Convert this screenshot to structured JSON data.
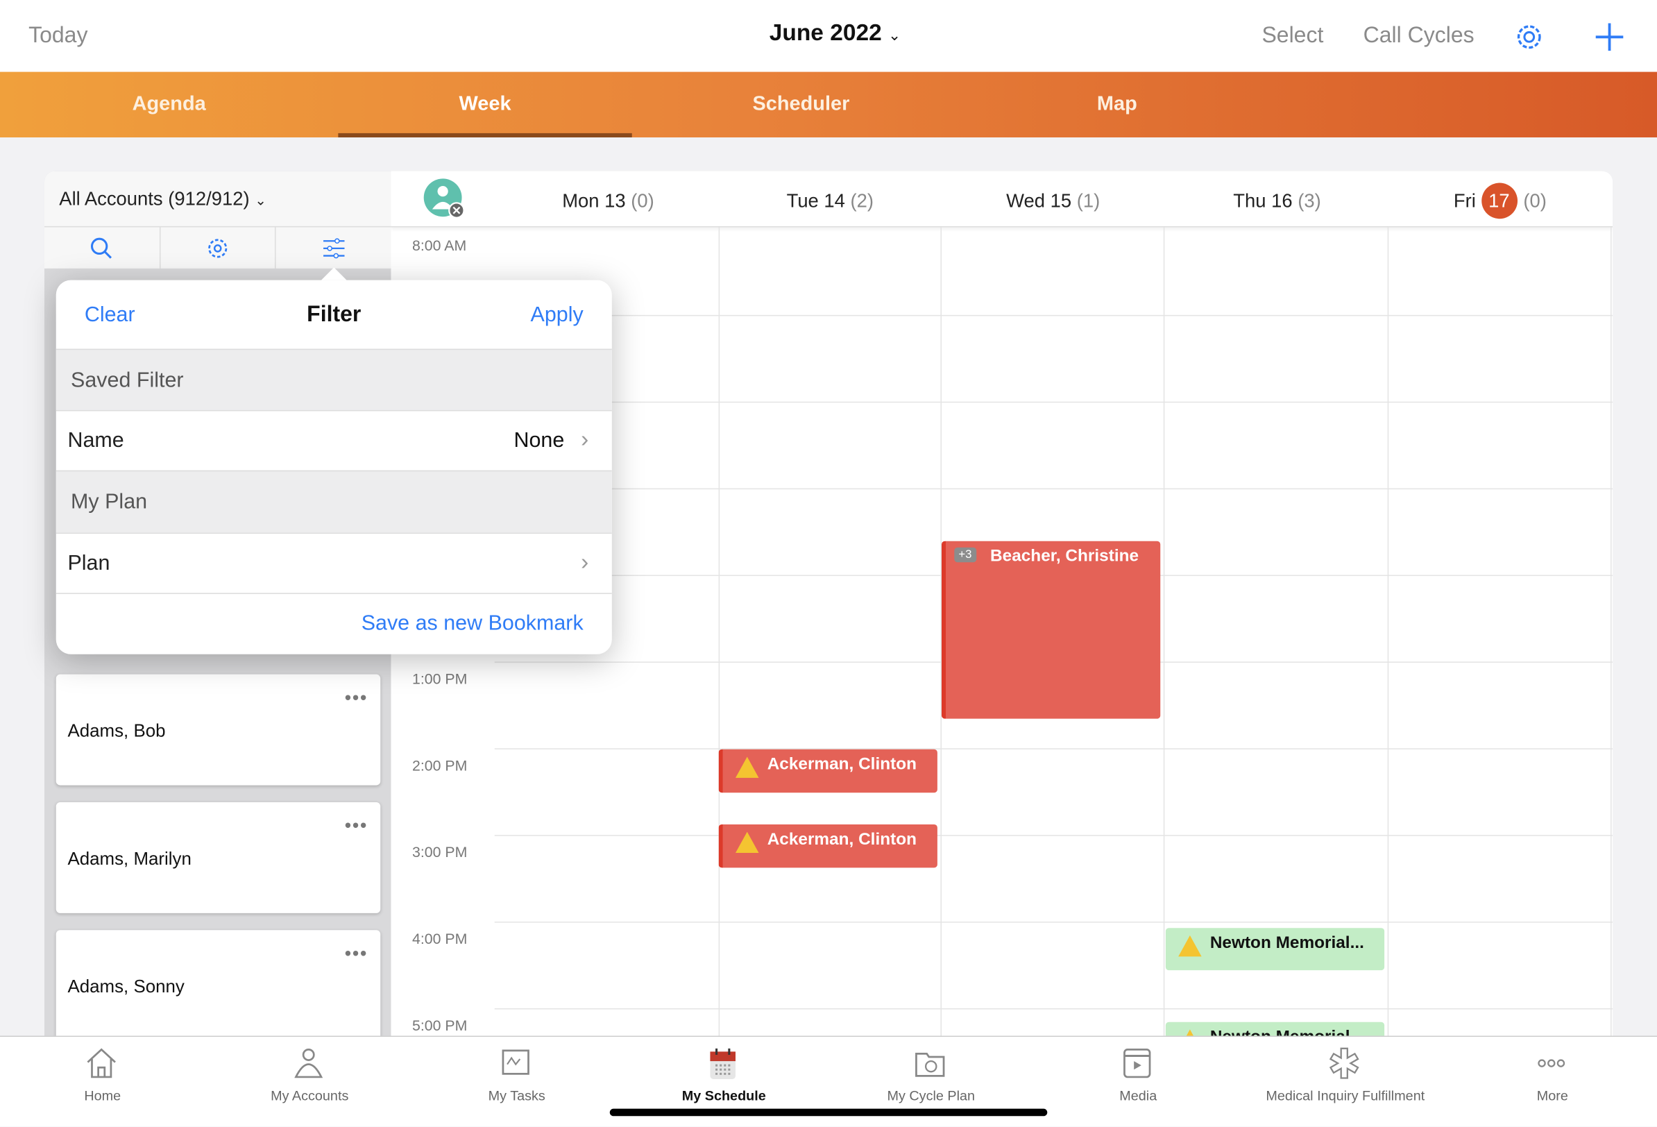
{
  "header": {
    "today": "Today",
    "month": "June 2022",
    "select": "Select",
    "call_cycles": "Call Cycles",
    "accent": "#2f7cf6"
  },
  "tabs": [
    {
      "label": "Agenda"
    },
    {
      "label": "Week",
      "active": true
    },
    {
      "label": "Scheduler"
    },
    {
      "label": "Map"
    }
  ],
  "accounts": {
    "dropdown": "All Accounts (912/912)",
    "items": [
      {
        "name": "Adams, Bob"
      },
      {
        "name": "Adams, Marilyn"
      },
      {
        "name": "Adams, Sonny"
      }
    ]
  },
  "filter": {
    "clear": "Clear",
    "title": "Filter",
    "apply": "Apply",
    "saved_filter": "Saved Filter",
    "name_label": "Name",
    "name_value": "None",
    "my_plan": "My Plan",
    "plan_label": "Plan",
    "bookmark": "Save as new Bookmark"
  },
  "week": {
    "days": [
      {
        "label": "Mon 13",
        "count": "(0)"
      },
      {
        "label": "Tue 14",
        "count": "(2)"
      },
      {
        "label": "Wed 15",
        "count": "(1)"
      },
      {
        "label": "Thu 16",
        "count": "(3)"
      },
      {
        "label": "Fri",
        "date": "17",
        "count": "(0)",
        "today": true
      }
    ],
    "times": [
      "8:00 AM",
      "1:00 PM",
      "2:00 PM",
      "3:00 PM",
      "4:00 PM",
      "5:00 PM"
    ],
    "events": [
      {
        "day": 2,
        "start": 11.4,
        "end": 13.45,
        "title": "Beacher, Christine",
        "badge": "+3",
        "color": "#e46257"
      },
      {
        "day": 1,
        "start": 13.8,
        "end": 14.3,
        "title": "Ackerman, Clinton",
        "warning": true,
        "color": "#e46257"
      },
      {
        "day": 1,
        "start": 14.67,
        "end": 15.17,
        "title": "Ackerman, Clinton",
        "warning": true,
        "color": "#e46257"
      },
      {
        "day": 3,
        "start": 15.87,
        "end": 16.35,
        "title": "Newton Memorial...",
        "warning": true,
        "color": "#c3edc6"
      },
      {
        "day": 3,
        "start": 16.95,
        "end": 17.45,
        "title": "Newton Memorial...",
        "warning": true,
        "color": "#c3edc6"
      }
    ]
  },
  "bottom_nav": [
    {
      "label": "Home",
      "icon": "home-icon"
    },
    {
      "label": "My Accounts",
      "icon": "person-icon"
    },
    {
      "label": "My Tasks",
      "icon": "tasks-icon"
    },
    {
      "label": "My Schedule",
      "icon": "calendar-icon",
      "active": true
    },
    {
      "label": "My Cycle Plan",
      "icon": "folder-cycle-icon"
    },
    {
      "label": "Media",
      "icon": "media-icon"
    },
    {
      "label": "Medical Inquiry Fulfillment",
      "icon": "medical-icon"
    },
    {
      "label": "More",
      "icon": "more-icon"
    }
  ]
}
